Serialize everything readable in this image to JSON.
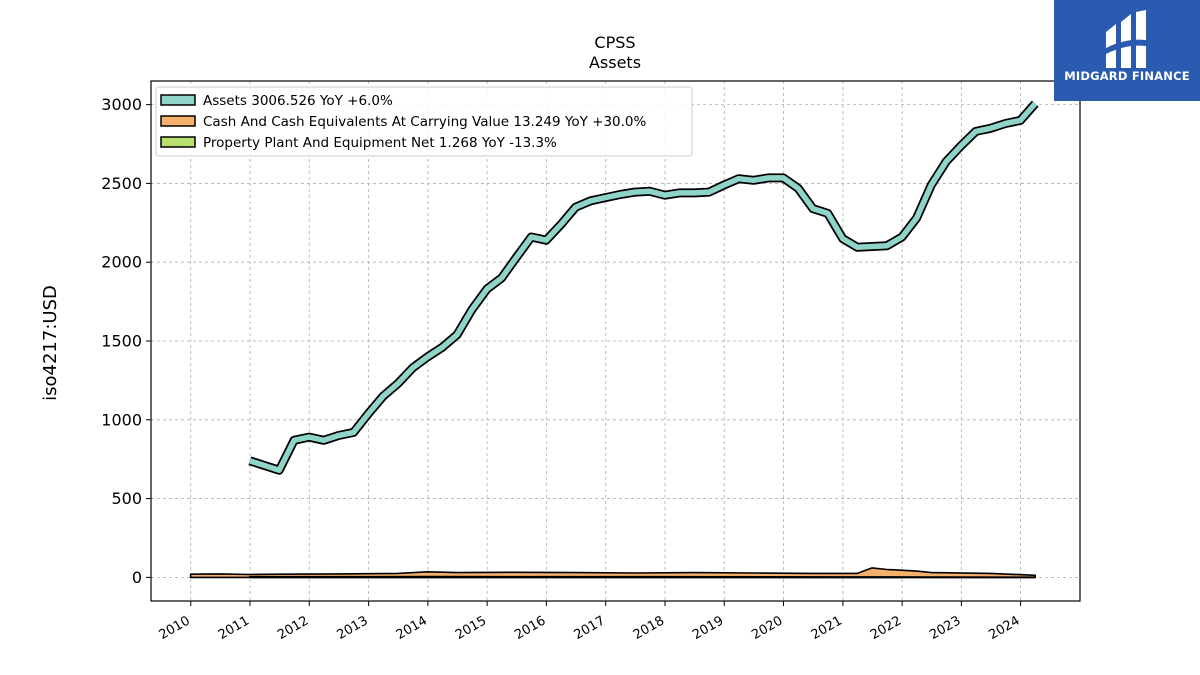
{
  "chart_data": {
    "type": "line",
    "title": "CPSS",
    "subtitle": "Assets",
    "ylabel": "iso4217:USD",
    "ylim": [
      -150,
      3150
    ],
    "xlim": [
      "2009-05-01",
      "2025-01-01"
    ],
    "yticks": [
      0,
      500,
      1000,
      1500,
      2000,
      2500,
      3000
    ],
    "xticks": [
      "2010",
      "2011",
      "2012",
      "2013",
      "2014",
      "2015",
      "2016",
      "2017",
      "2018",
      "2019",
      "2020",
      "2021",
      "2022",
      "2023",
      "2024"
    ],
    "grid": true,
    "legend_position": "top-left",
    "series": [
      {
        "name": "Assets",
        "legend": "Assets  3006.526 YoY +6.0%",
        "color": "#8fd4c8",
        "style": "band",
        "points": [
          [
            "2010-12-31",
            740
          ],
          [
            "2011-06-30",
            680
          ],
          [
            "2011-09-30",
            870
          ],
          [
            "2011-12-31",
            890
          ],
          [
            "2012-03-31",
            870
          ],
          [
            "2012-06-30",
            900
          ],
          [
            "2012-09-30",
            920
          ],
          [
            "2012-12-31",
            1040
          ],
          [
            "2013-03-31",
            1150
          ],
          [
            "2013-06-30",
            1230
          ],
          [
            "2013-09-30",
            1330
          ],
          [
            "2013-12-31",
            1400
          ],
          [
            "2014-03-31",
            1460
          ],
          [
            "2014-06-30",
            1540
          ],
          [
            "2014-09-30",
            1700
          ],
          [
            "2014-12-31",
            1830
          ],
          [
            "2015-03-31",
            1900
          ],
          [
            "2015-06-30",
            2030
          ],
          [
            "2015-09-30",
            2160
          ],
          [
            "2015-12-31",
            2140
          ],
          [
            "2016-03-31",
            2240
          ],
          [
            "2016-06-30",
            2350
          ],
          [
            "2016-09-30",
            2390
          ],
          [
            "2016-12-31",
            2410
          ],
          [
            "2017-03-31",
            2430
          ],
          [
            "2017-06-30",
            2445
          ],
          [
            "2017-09-30",
            2450
          ],
          [
            "2017-12-31",
            2425
          ],
          [
            "2018-03-31",
            2440
          ],
          [
            "2018-06-30",
            2440
          ],
          [
            "2018-09-30",
            2445
          ],
          [
            "2018-12-31",
            2490
          ],
          [
            "2019-03-31",
            2530
          ],
          [
            "2019-06-30",
            2520
          ],
          [
            "2019-09-30",
            2535
          ],
          [
            "2019-12-31",
            2535
          ],
          [
            "2020-03-31",
            2470
          ],
          [
            "2020-06-30",
            2340
          ],
          [
            "2020-09-30",
            2310
          ],
          [
            "2020-12-31",
            2150
          ],
          [
            "2021-03-31",
            2095
          ],
          [
            "2021-06-30",
            2100
          ],
          [
            "2021-09-30",
            2105
          ],
          [
            "2021-12-31",
            2160
          ],
          [
            "2022-03-31",
            2280
          ],
          [
            "2022-06-30",
            2490
          ],
          [
            "2022-09-30",
            2640
          ],
          [
            "2022-12-31",
            2740
          ],
          [
            "2023-03-31",
            2830
          ],
          [
            "2023-06-30",
            2850
          ],
          [
            "2023-09-30",
            2880
          ],
          [
            "2023-12-31",
            2900
          ],
          [
            "2024-03-31",
            3006.526
          ]
        ]
      },
      {
        "name": "Cash And Cash Equivalents At Carrying Value",
        "legend": "Cash And Cash Equivalents At Carrying Value  13.249 YoY +30.0%",
        "color": "#f5b06b",
        "style": "area",
        "points": [
          [
            "2009-12-31",
            20
          ],
          [
            "2010-06-30",
            22
          ],
          [
            "2010-12-31",
            18
          ],
          [
            "2011-06-30",
            20
          ],
          [
            "2012-06-30",
            22
          ],
          [
            "2013-06-30",
            25
          ],
          [
            "2013-12-31",
            35
          ],
          [
            "2014-06-30",
            30
          ],
          [
            "2015-06-30",
            32
          ],
          [
            "2016-06-30",
            30
          ],
          [
            "2017-06-30",
            28
          ],
          [
            "2018-06-30",
            30
          ],
          [
            "2019-06-30",
            28
          ],
          [
            "2020-06-30",
            25
          ],
          [
            "2021-03-31",
            25
          ],
          [
            "2021-06-30",
            60
          ],
          [
            "2021-09-30",
            50
          ],
          [
            "2022-03-31",
            40
          ],
          [
            "2022-06-30",
            30
          ],
          [
            "2023-06-30",
            25
          ],
          [
            "2024-03-31",
            13.249
          ]
        ]
      },
      {
        "name": "Property Plant And Equipment Net",
        "legend": "Property Plant And Equipment Net  1.268 YoY -13.3%",
        "color": "#b8e06e",
        "style": "area",
        "points": [
          [
            "2010-12-31",
            4
          ],
          [
            "2013-12-31",
            5
          ],
          [
            "2017-12-31",
            4
          ],
          [
            "2020-12-31",
            3
          ],
          [
            "2024-03-31",
            1.268
          ]
        ]
      }
    ]
  },
  "logo": {
    "text": "MIDGARD FINANCE"
  }
}
